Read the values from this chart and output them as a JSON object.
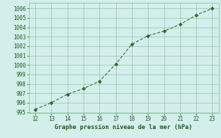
{
  "x": [
    12,
    13,
    14,
    15,
    16,
    17,
    18,
    19,
    20,
    21,
    22,
    23
  ],
  "y": [
    995.3,
    996.0,
    996.9,
    997.5,
    998.3,
    1000.1,
    1002.2,
    1003.1,
    1003.6,
    1004.3,
    1005.3,
    1006.0
  ],
  "xlim": [
    11.6,
    23.4
  ],
  "ylim": [
    994.9,
    1006.6
  ],
  "xticks": [
    12,
    13,
    14,
    15,
    16,
    17,
    18,
    19,
    20,
    21,
    22,
    23
  ],
  "yticks": [
    995,
    996,
    997,
    998,
    999,
    1000,
    1001,
    1002,
    1003,
    1004,
    1005,
    1006
  ],
  "line_color": "#2d6a2d",
  "marker_color": "#2d6a2d",
  "bg_color": "#d4eeec",
  "grid_color": "#7abf8a",
  "xlabel": "Graphe pression niveau de la mer (hPa)",
  "xlabel_color": "#1a5c1a",
  "tick_color": "#1a5c1a",
  "tick_fontsize": 5.5,
  "xlabel_fontsize": 6.2
}
